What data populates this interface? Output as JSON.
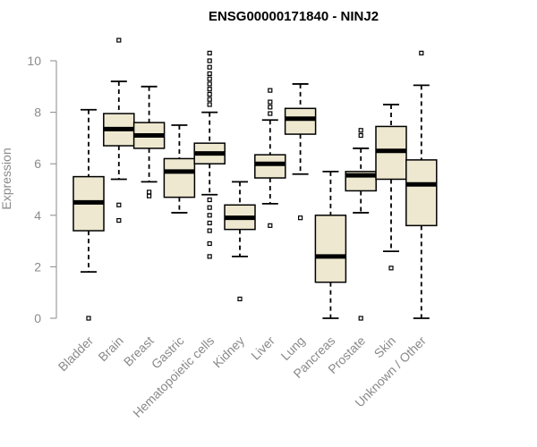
{
  "chart_data": {
    "type": "boxplot",
    "title": "ENSG00000171840 - NINJ2",
    "xlabel": "",
    "ylabel": "Expression",
    "ylim": [
      0,
      10.5
    ],
    "yticks": [
      0,
      2,
      4,
      6,
      8,
      10
    ],
    "box_fill": "#EEE8D0",
    "grid": false,
    "categories": [
      "Bladder",
      "Brain",
      "Breast",
      "Gastric",
      "Hematopoietic cells",
      "Kidney",
      "Liver",
      "Lung",
      "Pancreas",
      "Prostate",
      "Skin",
      "Unknown / Other"
    ],
    "boxes": [
      {
        "min": 1.8,
        "q1": 3.4,
        "median": 4.5,
        "q3": 5.5,
        "max": 8.1,
        "outliers": [
          0.0
        ]
      },
      {
        "min": 5.4,
        "q1": 6.7,
        "median": 7.35,
        "q3": 7.95,
        "max": 9.2,
        "outliers": [
          10.8,
          4.4,
          3.8
        ]
      },
      {
        "min": 5.3,
        "q1": 6.6,
        "median": 7.1,
        "q3": 7.6,
        "max": 9.0,
        "outliers": [
          4.9,
          4.75
        ]
      },
      {
        "min": 4.1,
        "q1": 4.7,
        "median": 5.7,
        "q3": 6.2,
        "max": 7.5,
        "outliers": []
      },
      {
        "min": 4.8,
        "q1": 6.0,
        "median": 6.4,
        "q3": 6.8,
        "max": 8.0,
        "outliers": [
          10.3,
          10.0,
          9.75,
          9.5,
          9.3,
          9.1,
          8.9,
          8.7,
          8.5,
          8.3,
          4.6,
          4.3,
          4.0,
          3.7,
          3.4,
          2.9,
          2.4
        ]
      },
      {
        "min": 2.4,
        "q1": 3.45,
        "median": 3.9,
        "q3": 4.4,
        "max": 5.3,
        "outliers": [
          0.75
        ]
      },
      {
        "min": 4.45,
        "q1": 5.45,
        "median": 6.0,
        "q3": 6.35,
        "max": 7.7,
        "outliers": [
          8.85,
          8.4,
          8.2,
          7.95,
          3.6
        ]
      },
      {
        "min": 5.6,
        "q1": 7.15,
        "median": 7.75,
        "q3": 8.15,
        "max": 9.1,
        "outliers": [
          3.9
        ]
      },
      {
        "min": 0.0,
        "q1": 1.4,
        "median": 2.4,
        "q3": 4.0,
        "max": 5.7,
        "outliers": []
      },
      {
        "min": 4.1,
        "q1": 4.95,
        "median": 5.55,
        "q3": 5.7,
        "max": 6.6,
        "outliers": [
          7.3,
          7.1,
          0.0
        ]
      },
      {
        "min": 2.6,
        "q1": 5.4,
        "median": 6.5,
        "q3": 7.45,
        "max": 8.3,
        "outliers": [
          1.95
        ]
      },
      {
        "min": 0.0,
        "q1": 3.6,
        "median": 5.2,
        "q3": 6.15,
        "max": 9.05,
        "outliers": [
          10.3
        ]
      }
    ]
  }
}
